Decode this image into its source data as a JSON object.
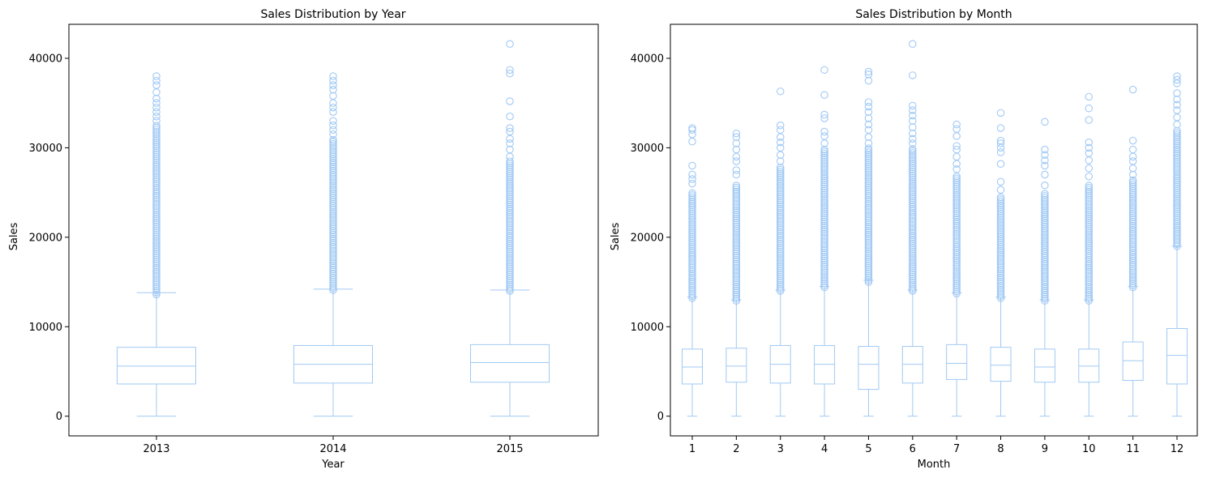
{
  "chart_data": [
    {
      "type": "box",
      "title": "Sales Distribution by Year",
      "xlabel": "Year",
      "ylabel": "Sales",
      "ylim": [
        -2200,
        43800
      ],
      "yticks": [
        0,
        10000,
        20000,
        30000,
        40000
      ],
      "categories": [
        "2013",
        "2014",
        "2015"
      ],
      "grid": false,
      "color": "#a1c9f4",
      "boxes": [
        {
          "category": "2013",
          "whislo": 0,
          "q1": 3600,
          "median": 5600,
          "q3": 7700,
          "whishi": 13800,
          "outliers_dense_from": 13600,
          "outliers_dense_to": 32500,
          "outliers": [
            33000,
            33500,
            34000,
            34500,
            35000,
            35500,
            36200,
            37000,
            37500,
            38000
          ]
        },
        {
          "category": "2014",
          "whislo": 0,
          "q1": 3700,
          "median": 5800,
          "q3": 7900,
          "whishi": 14200,
          "outliers_dense_from": 14100,
          "outliers_dense_to": 31000,
          "outliers": [
            31500,
            32000,
            32500,
            33000,
            34000,
            34500,
            35000,
            35800,
            36500,
            37000,
            37500,
            38000
          ]
        },
        {
          "category": "2015",
          "whislo": 0,
          "q1": 3800,
          "median": 6000,
          "q3": 8000,
          "whishi": 14100,
          "outliers_dense_from": 14000,
          "outliers_dense_to": 28500,
          "outliers": [
            29000,
            29800,
            30500,
            31000,
            31800,
            32200,
            33500,
            35200,
            38300,
            38700,
            41600
          ]
        }
      ]
    },
    {
      "type": "box",
      "title": "Sales Distribution by Month",
      "xlabel": "Month",
      "ylabel": "Sales",
      "ylim": [
        -2200,
        43800
      ],
      "yticks": [
        0,
        10000,
        20000,
        30000,
        40000
      ],
      "categories": [
        "1",
        "2",
        "3",
        "4",
        "5",
        "6",
        "7",
        "8",
        "9",
        "10",
        "11",
        "12"
      ],
      "grid": false,
      "color": "#a1c9f4",
      "boxes": [
        {
          "category": "1",
          "whislo": 0,
          "q1": 3600,
          "median": 5500,
          "q3": 7500,
          "whishi": 13300,
          "outliers_dense_from": 13200,
          "outliers_dense_to": 25000,
          "outliers": [
            26000,
            26500,
            27000,
            28000,
            30700,
            31500,
            32000,
            32200
          ]
        },
        {
          "category": "2",
          "whislo": 0,
          "q1": 3800,
          "median": 5600,
          "q3": 7600,
          "whishi": 13000,
          "outliers_dense_from": 12900,
          "outliers_dense_to": 26000,
          "outliers": [
            27000,
            27500,
            28500,
            29000,
            29800,
            30500,
            31200,
            31600
          ]
        },
        {
          "category": "3",
          "whislo": 0,
          "q1": 3700,
          "median": 5800,
          "q3": 7900,
          "whishi": 14100,
          "outliers_dense_from": 14000,
          "outliers_dense_to": 28000,
          "outliers": [
            28500,
            29200,
            30000,
            30600,
            31200,
            32000,
            32500,
            36300
          ]
        },
        {
          "category": "4",
          "whislo": 0,
          "q1": 3600,
          "median": 5800,
          "q3": 7900,
          "whishi": 14500,
          "outliers_dense_from": 14400,
          "outliers_dense_to": 30000,
          "outliers": [
            30500,
            31300,
            31800,
            33300,
            33700,
            35900,
            38700
          ]
        },
        {
          "category": "5",
          "whislo": 0,
          "q1": 3000,
          "median": 5800,
          "q3": 7800,
          "whishi": 15200,
          "outliers_dense_from": 15000,
          "outliers_dense_to": 30000,
          "outliers": [
            30500,
            31200,
            32000,
            32600,
            33300,
            34000,
            34600,
            35100,
            37500,
            38200,
            38500
          ]
        },
        {
          "category": "6",
          "whislo": 0,
          "q1": 3700,
          "median": 5800,
          "q3": 7800,
          "whishi": 14100,
          "outliers_dense_from": 14000,
          "outliers_dense_to": 30000,
          "outliers": [
            30500,
            31000,
            31600,
            32300,
            33000,
            33600,
            34200,
            34700,
            38100,
            41600
          ]
        },
        {
          "category": "7",
          "whislo": 0,
          "q1": 4100,
          "median": 5900,
          "q3": 8000,
          "whishi": 13800,
          "outliers_dense_from": 13700,
          "outliers_dense_to": 27000,
          "outliers": [
            27600,
            28200,
            29000,
            29800,
            30200,
            31300,
            32100,
            32600
          ]
        },
        {
          "category": "8",
          "whislo": 0,
          "q1": 3900,
          "median": 5700,
          "q3": 7700,
          "whishi": 13300,
          "outliers_dense_from": 13200,
          "outliers_dense_to": 24500,
          "outliers": [
            25300,
            26200,
            28200,
            29500,
            30000,
            30500,
            30800,
            32200,
            33900
          ]
        },
        {
          "category": "9",
          "whislo": 0,
          "q1": 3800,
          "median": 5500,
          "q3": 7500,
          "whishi": 13000,
          "outliers_dense_from": 12900,
          "outliers_dense_to": 25000,
          "outliers": [
            25800,
            27000,
            28000,
            28600,
            29200,
            29800,
            32900
          ]
        },
        {
          "category": "10",
          "whislo": 0,
          "q1": 3800,
          "median": 5600,
          "q3": 7500,
          "whishi": 13000,
          "outliers_dense_from": 12900,
          "outliers_dense_to": 26000,
          "outliers": [
            26800,
            27700,
            28600,
            29400,
            30000,
            30600,
            33100,
            34400,
            35700
          ]
        },
        {
          "category": "11",
          "whislo": 0,
          "q1": 4000,
          "median": 6200,
          "q3": 8300,
          "whishi": 14500,
          "outliers_dense_from": 14400,
          "outliers_dense_to": 26500,
          "outliers": [
            27000,
            27700,
            28500,
            29000,
            29800,
            30800,
            36500
          ]
        },
        {
          "category": "12",
          "whislo": 0,
          "q1": 3600,
          "median": 6800,
          "q3": 9800,
          "whishi": 19000,
          "outliers_dense_from": 19000,
          "outliers_dense_to": 32000,
          "outliers": [
            32600,
            33400,
            34200,
            34800,
            35400,
            36100,
            37200,
            37600,
            38000
          ]
        }
      ]
    }
  ]
}
